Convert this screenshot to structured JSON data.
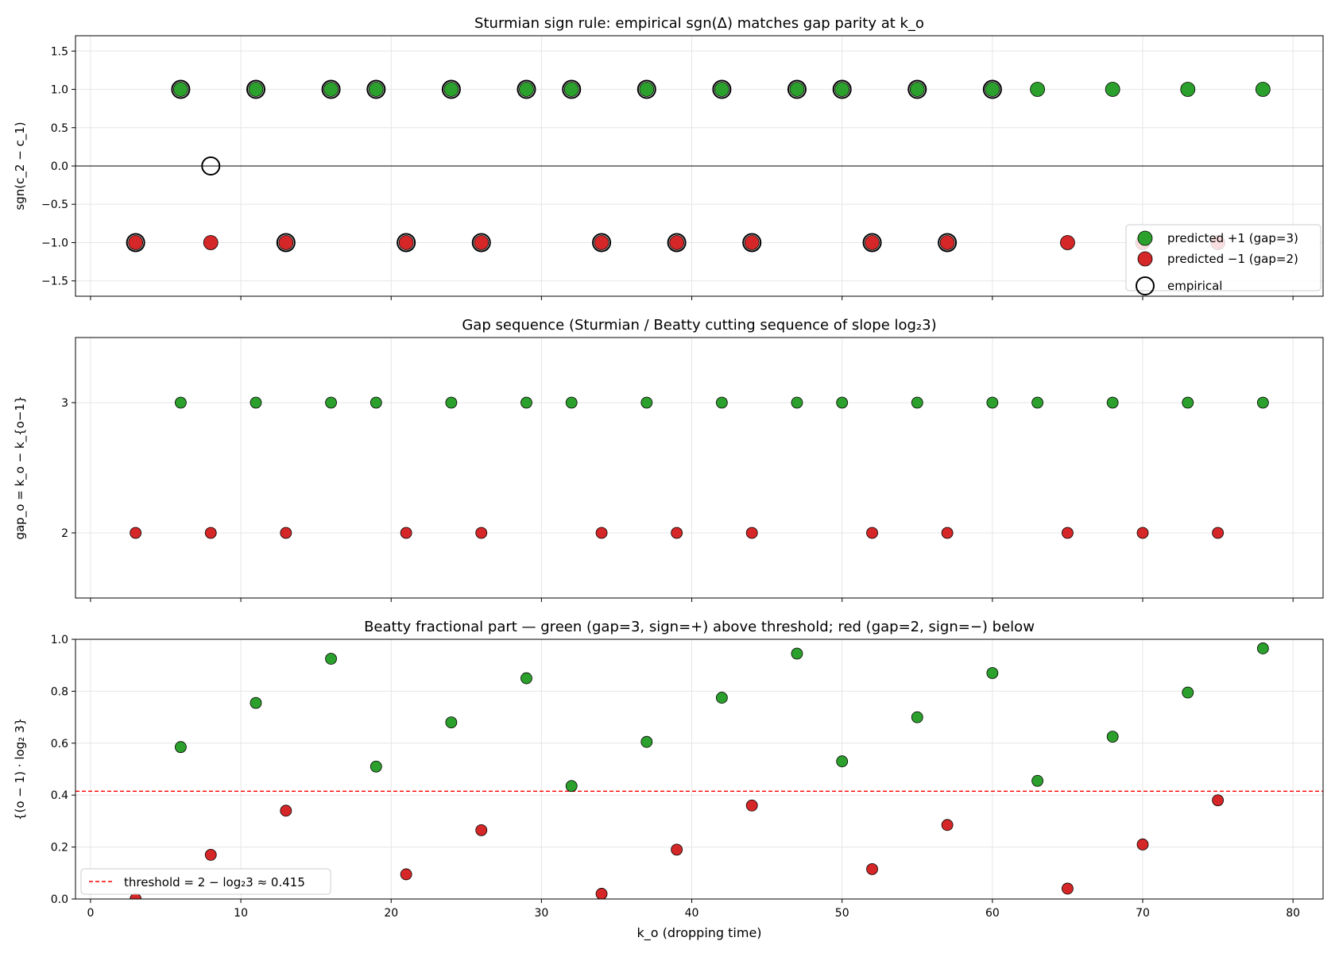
{
  "figure": {
    "xlabel": "k_o (dropping time)"
  },
  "chart_data": [
    {
      "type": "scatter",
      "title": "Sturmian sign rule: empirical sgn(Δ) matches gap parity at k_o",
      "xlabel": "",
      "ylabel": "sgn(c_2 − c_1)",
      "xlim": [
        -1,
        82
      ],
      "ylim": [
        -1.7,
        1.7
      ],
      "xticks": [
        0,
        10,
        20,
        30,
        40,
        50,
        60,
        70,
        80
      ],
      "yticks": [
        -1.5,
        -1.0,
        -0.5,
        0.0,
        0.5,
        1.0,
        1.5
      ],
      "ytick_labels": [
        "−1.5",
        "−1.0",
        "−0.5",
        "0.0",
        "0.5",
        "1.0",
        "1.5"
      ],
      "grid": true,
      "zero_line": true,
      "legend": "lower-right",
      "series": [
        {
          "name": "predicted +1 (gap=3)",
          "color": "#2ca02c",
          "x": [
            6,
            11,
            16,
            19,
            24,
            29,
            32,
            37,
            42,
            47,
            50,
            55,
            60,
            63,
            68,
            73,
            78
          ],
          "y": [
            1,
            1,
            1,
            1,
            1,
            1,
            1,
            1,
            1,
            1,
            1,
            1,
            1,
            1,
            1,
            1,
            1
          ]
        },
        {
          "name": "predicted −1 (gap=2)",
          "color": "#d62728",
          "x": [
            3,
            8,
            13,
            21,
            26,
            34,
            39,
            44,
            52,
            57,
            65,
            70,
            75
          ],
          "y": [
            -1,
            -1,
            -1,
            -1,
            -1,
            -1,
            -1,
            -1,
            -1,
            -1,
            -1,
            -1,
            -1
          ]
        },
        {
          "name": "empirical",
          "color": "#000000",
          "marker": "open-circle",
          "x": [
            3,
            6,
            8,
            11,
            13,
            16,
            19,
            21,
            24,
            26,
            29,
            32,
            34,
            37,
            39,
            42,
            44,
            47,
            50,
            52,
            55,
            57,
            60
          ],
          "y": [
            -1,
            1,
            0,
            1,
            -1,
            1,
            1,
            -1,
            1,
            -1,
            1,
            1,
            -1,
            1,
            -1,
            1,
            -1,
            1,
            1,
            -1,
            1,
            -1,
            1
          ]
        }
      ]
    },
    {
      "type": "scatter",
      "title": "Gap sequence (Sturmian / Beatty cutting sequence of slope log₂3)",
      "xlabel": "",
      "ylabel": "gap_o = k_o − k_{o−1}",
      "xlim": [
        -1,
        82
      ],
      "ylim": [
        1.5,
        3.5
      ],
      "xticks": [
        0,
        10,
        20,
        30,
        40,
        50,
        60,
        70,
        80
      ],
      "yticks": [
        2,
        3
      ],
      "ytick_labels": [
        "2",
        "3"
      ],
      "grid": true,
      "series": [
        {
          "name": "gap=3",
          "color": "#2ca02c",
          "x": [
            6,
            11,
            16,
            19,
            24,
            29,
            32,
            37,
            42,
            47,
            50,
            55,
            60,
            63,
            68,
            73,
            78
          ],
          "y": [
            3,
            3,
            3,
            3,
            3,
            3,
            3,
            3,
            3,
            3,
            3,
            3,
            3,
            3,
            3,
            3,
            3
          ]
        },
        {
          "name": "gap=2",
          "color": "#d62728",
          "x": [
            3,
            8,
            13,
            21,
            26,
            34,
            39,
            44,
            52,
            57,
            65,
            70,
            75
          ],
          "y": [
            2,
            2,
            2,
            2,
            2,
            2,
            2,
            2,
            2,
            2,
            2,
            2,
            2
          ]
        }
      ]
    },
    {
      "type": "scatter",
      "title": "Beatty fractional part — green (gap=3, sign=+) above threshold; red (gap=2, sign=−) below",
      "xlabel": "k_o (dropping time)",
      "ylabel": "{(o − 1) · log₂ 3}",
      "xlim": [
        -1,
        82
      ],
      "ylim": [
        0.0,
        1.0
      ],
      "xticks": [
        0,
        10,
        20,
        30,
        40,
        50,
        60,
        70,
        80
      ],
      "yticks": [
        0.0,
        0.2,
        0.4,
        0.6,
        0.8,
        1.0
      ],
      "ytick_labels": [
        "0.0",
        "0.2",
        "0.4",
        "0.6",
        "0.8",
        "1.0"
      ],
      "grid": true,
      "legend": "lower-left",
      "threshold": {
        "name": "threshold = 2 − log₂3 ≈ 0.415",
        "y": 0.415,
        "color": "#ff0000"
      },
      "series": [
        {
          "name": "gap=3",
          "color": "#2ca02c",
          "x": [
            6,
            11,
            16,
            19,
            24,
            29,
            32,
            37,
            42,
            47,
            50,
            55,
            60,
            63,
            68,
            73,
            78
          ],
          "y": [
            0.585,
            0.755,
            0.925,
            0.51,
            0.68,
            0.85,
            0.435,
            0.605,
            0.775,
            0.945,
            0.53,
            0.7,
            0.87,
            0.455,
            0.625,
            0.795,
            0.965
          ]
        },
        {
          "name": "gap=2",
          "color": "#d62728",
          "x": [
            3,
            8,
            13,
            21,
            26,
            34,
            39,
            44,
            52,
            57,
            65,
            70,
            75
          ],
          "y": [
            0.0,
            0.17,
            0.34,
            0.095,
            0.265,
            0.02,
            0.19,
            0.36,
            0.115,
            0.285,
            0.04,
            0.21,
            0.38
          ]
        }
      ]
    }
  ]
}
